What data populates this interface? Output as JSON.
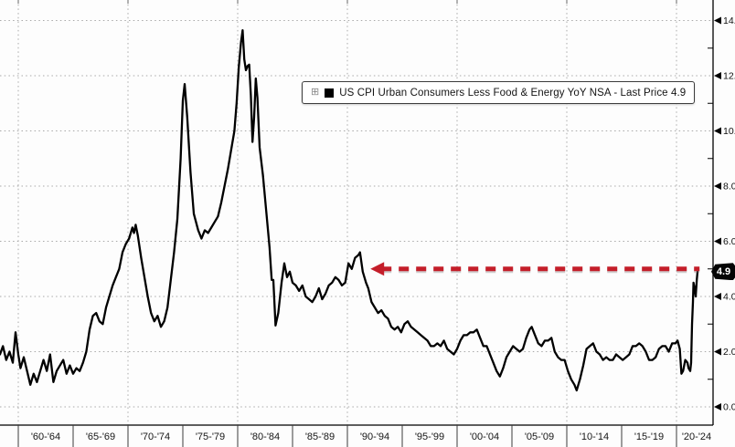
{
  "window": {
    "background": "#fdfdfd"
  },
  "legend": {
    "expander_icon": "⊞",
    "swatch_color": "#000000",
    "label": "US CPI Urban Consumers Less Food & Energy YoY NSA - Last Price 4.9"
  },
  "last_price_badge": {
    "value": "4.9",
    "bg": "#050505",
    "text_color": "#ffffff"
  },
  "annotation_arrow": {
    "level": 4.9,
    "from_year": 1992.1,
    "to_year": 2022.1,
    "direction": "left",
    "color": "#c41e2a",
    "style": "dashed"
  },
  "chart_data": {
    "type": "line",
    "title": "US CPI Urban Consumers Less Food & Energy YoY NSA - Last Price 4.9",
    "series_name": "US CPI Urban Consumers Less Food & Energy YoY NSA",
    "last_price": 4.9,
    "line_color": "#000000",
    "grid": "dotted",
    "legend_position": "top-center",
    "x_categories": [
      "'60-'64",
      "'65-'69",
      "'70-'74",
      "'75-'79",
      "'80-'84",
      "'85-'89",
      "'90-'94",
      "'95-'99",
      "'00-'04",
      "'05-'09",
      "'10-'14",
      "'15-'19",
      "'20-'24"
    ],
    "x_range_years": [
      1958.33,
      2023.33
    ],
    "y_ticks": [
      0,
      2,
      4,
      6,
      8,
      10,
      12,
      14
    ],
    "y_minor_ticks": [
      1,
      3,
      5,
      7,
      9,
      11,
      13
    ],
    "ylim": [
      -0.66,
      14.74
    ],
    "points": [
      [
        1958.33,
        1.9
      ],
      [
        1958.6,
        2.2
      ],
      [
        1958.9,
        1.7
      ],
      [
        1959.2,
        2.0
      ],
      [
        1959.5,
        1.6
      ],
      [
        1959.75,
        2.7
      ],
      [
        1960.0,
        1.9
      ],
      [
        1960.2,
        1.4
      ],
      [
        1960.5,
        1.8
      ],
      [
        1960.8,
        1.3
      ],
      [
        1961.1,
        0.8
      ],
      [
        1961.4,
        1.2
      ],
      [
        1961.7,
        0.9
      ],
      [
        1962.0,
        1.3
      ],
      [
        1962.3,
        1.7
      ],
      [
        1962.6,
        1.3
      ],
      [
        1962.9,
        1.9
      ],
      [
        1963.2,
        0.9
      ],
      [
        1963.5,
        1.3
      ],
      [
        1963.8,
        1.5
      ],
      [
        1964.1,
        1.7
      ],
      [
        1964.4,
        1.2
      ],
      [
        1964.7,
        1.5
      ],
      [
        1965.0,
        1.2
      ],
      [
        1965.3,
        1.4
      ],
      [
        1965.6,
        1.3
      ],
      [
        1965.9,
        1.6
      ],
      [
        1966.2,
        2.0
      ],
      [
        1966.5,
        2.8
      ],
      [
        1966.8,
        3.3
      ],
      [
        1967.1,
        3.4
      ],
      [
        1967.4,
        3.1
      ],
      [
        1967.7,
        3.0
      ],
      [
        1968.0,
        3.6
      ],
      [
        1968.3,
        4.0
      ],
      [
        1968.6,
        4.4
      ],
      [
        1968.9,
        4.7
      ],
      [
        1969.2,
        5.0
      ],
      [
        1969.5,
        5.6
      ],
      [
        1969.8,
        5.9
      ],
      [
        1970.1,
        6.1
      ],
      [
        1970.4,
        6.5
      ],
      [
        1970.55,
        6.3
      ],
      [
        1970.7,
        6.6
      ],
      [
        1970.9,
        6.2
      ],
      [
        1971.2,
        5.4
      ],
      [
        1971.5,
        4.7
      ],
      [
        1971.8,
        4.0
      ],
      [
        1972.1,
        3.4
      ],
      [
        1972.4,
        3.1
      ],
      [
        1972.7,
        3.3
      ],
      [
        1973.0,
        2.9
      ],
      [
        1973.3,
        3.1
      ],
      [
        1973.6,
        3.6
      ],
      [
        1973.9,
        4.6
      ],
      [
        1974.2,
        5.6
      ],
      [
        1974.5,
        6.8
      ],
      [
        1974.8,
        9.0
      ],
      [
        1975.0,
        11.1
      ],
      [
        1975.17,
        11.7
      ],
      [
        1975.4,
        10.5
      ],
      [
        1975.7,
        8.5
      ],
      [
        1976.0,
        7.0
      ],
      [
        1976.4,
        6.4
      ],
      [
        1976.7,
        6.1
      ],
      [
        1977.0,
        6.4
      ],
      [
        1977.3,
        6.3
      ],
      [
        1977.6,
        6.5
      ],
      [
        1977.9,
        6.7
      ],
      [
        1978.2,
        6.9
      ],
      [
        1978.5,
        7.4
      ],
      [
        1978.8,
        8.0
      ],
      [
        1979.1,
        8.6
      ],
      [
        1979.4,
        9.3
      ],
      [
        1979.7,
        10.0
      ],
      [
        1979.9,
        11.0
      ],
      [
        1980.1,
        12.3
      ],
      [
        1980.3,
        13.2
      ],
      [
        1980.45,
        13.65
      ],
      [
        1980.6,
        12.6
      ],
      [
        1980.75,
        12.2
      ],
      [
        1980.9,
        12.35
      ],
      [
        1981.05,
        12.4
      ],
      [
        1981.2,
        11.3
      ],
      [
        1981.35,
        9.6
      ],
      [
        1981.5,
        10.5
      ],
      [
        1981.65,
        11.9
      ],
      [
        1981.8,
        11.2
      ],
      [
        1982.0,
        9.4
      ],
      [
        1982.3,
        8.4
      ],
      [
        1982.6,
        7.1
      ],
      [
        1982.9,
        5.8
      ],
      [
        1983.1,
        4.6
      ],
      [
        1983.25,
        4.6
      ],
      [
        1983.45,
        2.95
      ],
      [
        1983.7,
        3.4
      ],
      [
        1984.0,
        4.5
      ],
      [
        1984.25,
        5.2
      ],
      [
        1984.5,
        4.7
      ],
      [
        1984.75,
        4.9
      ],
      [
        1985.0,
        4.5
      ],
      [
        1985.3,
        4.4
      ],
      [
        1985.6,
        4.2
      ],
      [
        1985.9,
        4.4
      ],
      [
        1986.2,
        4.0
      ],
      [
        1986.5,
        3.9
      ],
      [
        1986.8,
        3.8
      ],
      [
        1987.1,
        4.0
      ],
      [
        1987.4,
        4.3
      ],
      [
        1987.7,
        3.9
      ],
      [
        1988.0,
        4.1
      ],
      [
        1988.3,
        4.4
      ],
      [
        1988.6,
        4.5
      ],
      [
        1988.9,
        4.7
      ],
      [
        1989.2,
        4.6
      ],
      [
        1989.5,
        4.4
      ],
      [
        1989.8,
        4.5
      ],
      [
        1990.1,
        5.2
      ],
      [
        1990.4,
        5.0
      ],
      [
        1990.7,
        5.4
      ],
      [
        1991.0,
        5.5
      ],
      [
        1991.15,
        5.6
      ],
      [
        1991.4,
        4.9
      ],
      [
        1991.7,
        4.5
      ],
      [
        1991.9,
        4.3
      ],
      [
        1992.2,
        3.8
      ],
      [
        1992.5,
        3.6
      ],
      [
        1992.8,
        3.4
      ],
      [
        1993.1,
        3.5
      ],
      [
        1993.4,
        3.3
      ],
      [
        1993.7,
        3.2
      ],
      [
        1994.0,
        2.9
      ],
      [
        1994.3,
        2.8
      ],
      [
        1994.6,
        2.9
      ],
      [
        1994.9,
        2.7
      ],
      [
        1995.2,
        3.0
      ],
      [
        1995.5,
        3.1
      ],
      [
        1995.8,
        2.9
      ],
      [
        1996.1,
        2.8
      ],
      [
        1996.4,
        2.7
      ],
      [
        1996.7,
        2.6
      ],
      [
        1997.0,
        2.5
      ],
      [
        1997.3,
        2.4
      ],
      [
        1997.6,
        2.2
      ],
      [
        1997.9,
        2.2
      ],
      [
        1998.2,
        2.3
      ],
      [
        1998.5,
        2.2
      ],
      [
        1998.8,
        2.4
      ],
      [
        1999.1,
        2.1
      ],
      [
        1999.4,
        2.0
      ],
      [
        1999.7,
        1.9
      ],
      [
        2000.0,
        2.1
      ],
      [
        2000.3,
        2.4
      ],
      [
        2000.6,
        2.6
      ],
      [
        2000.9,
        2.6
      ],
      [
        2001.2,
        2.7
      ],
      [
        2001.5,
        2.7
      ],
      [
        2001.8,
        2.8
      ],
      [
        2002.1,
        2.5
      ],
      [
        2002.4,
        2.2
      ],
      [
        2002.7,
        2.2
      ],
      [
        2003.0,
        1.9
      ],
      [
        2003.3,
        1.6
      ],
      [
        2003.6,
        1.3
      ],
      [
        2003.9,
        1.1
      ],
      [
        2004.2,
        1.4
      ],
      [
        2004.5,
        1.8
      ],
      [
        2004.8,
        2.0
      ],
      [
        2005.1,
        2.2
      ],
      [
        2005.4,
        2.1
      ],
      [
        2005.7,
        2.0
      ],
      [
        2006.0,
        2.1
      ],
      [
        2006.3,
        2.5
      ],
      [
        2006.6,
        2.8
      ],
      [
        2006.8,
        2.9
      ],
      [
        2007.1,
        2.6
      ],
      [
        2007.4,
        2.3
      ],
      [
        2007.7,
        2.2
      ],
      [
        2008.0,
        2.4
      ],
      [
        2008.3,
        2.4
      ],
      [
        2008.6,
        2.5
      ],
      [
        2008.9,
        2.0
      ],
      [
        2009.2,
        1.8
      ],
      [
        2009.5,
        1.7
      ],
      [
        2009.8,
        1.7
      ],
      [
        2010.1,
        1.3
      ],
      [
        2010.4,
        1.0
      ],
      [
        2010.7,
        0.8
      ],
      [
        2010.9,
        0.6
      ],
      [
        2011.2,
        1.0
      ],
      [
        2011.5,
        1.5
      ],
      [
        2011.8,
        2.1
      ],
      [
        2012.1,
        2.2
      ],
      [
        2012.4,
        2.3
      ],
      [
        2012.7,
        2.0
      ],
      [
        2013.0,
        1.9
      ],
      [
        2013.3,
        1.7
      ],
      [
        2013.6,
        1.8
      ],
      [
        2013.9,
        1.7
      ],
      [
        2014.2,
        1.7
      ],
      [
        2014.5,
        1.9
      ],
      [
        2014.8,
        1.8
      ],
      [
        2015.1,
        1.7
      ],
      [
        2015.4,
        1.8
      ],
      [
        2015.7,
        1.9
      ],
      [
        2016.0,
        2.2
      ],
      [
        2016.3,
        2.2
      ],
      [
        2016.6,
        2.3
      ],
      [
        2016.9,
        2.2
      ],
      [
        2017.2,
        2.0
      ],
      [
        2017.5,
        1.7
      ],
      [
        2017.8,
        1.7
      ],
      [
        2018.1,
        1.8
      ],
      [
        2018.4,
        2.1
      ],
      [
        2018.7,
        2.2
      ],
      [
        2019.0,
        2.2
      ],
      [
        2019.3,
        2.0
      ],
      [
        2019.6,
        2.3
      ],
      [
        2019.9,
        2.3
      ],
      [
        2020.1,
        2.4
      ],
      [
        2020.3,
        2.1
      ],
      [
        2020.45,
        1.2
      ],
      [
        2020.6,
        1.3
      ],
      [
        2020.8,
        1.7
      ],
      [
        2021.0,
        1.6
      ],
      [
        2021.1,
        1.4
      ],
      [
        2021.25,
        1.3
      ],
      [
        2021.33,
        1.6
      ],
      [
        2021.42,
        3.0
      ],
      [
        2021.5,
        3.8
      ],
      [
        2021.55,
        4.5
      ],
      [
        2021.65,
        4.3
      ],
      [
        2021.75,
        4.0
      ],
      [
        2021.85,
        4.6
      ],
      [
        2021.92,
        4.9
      ]
    ]
  }
}
